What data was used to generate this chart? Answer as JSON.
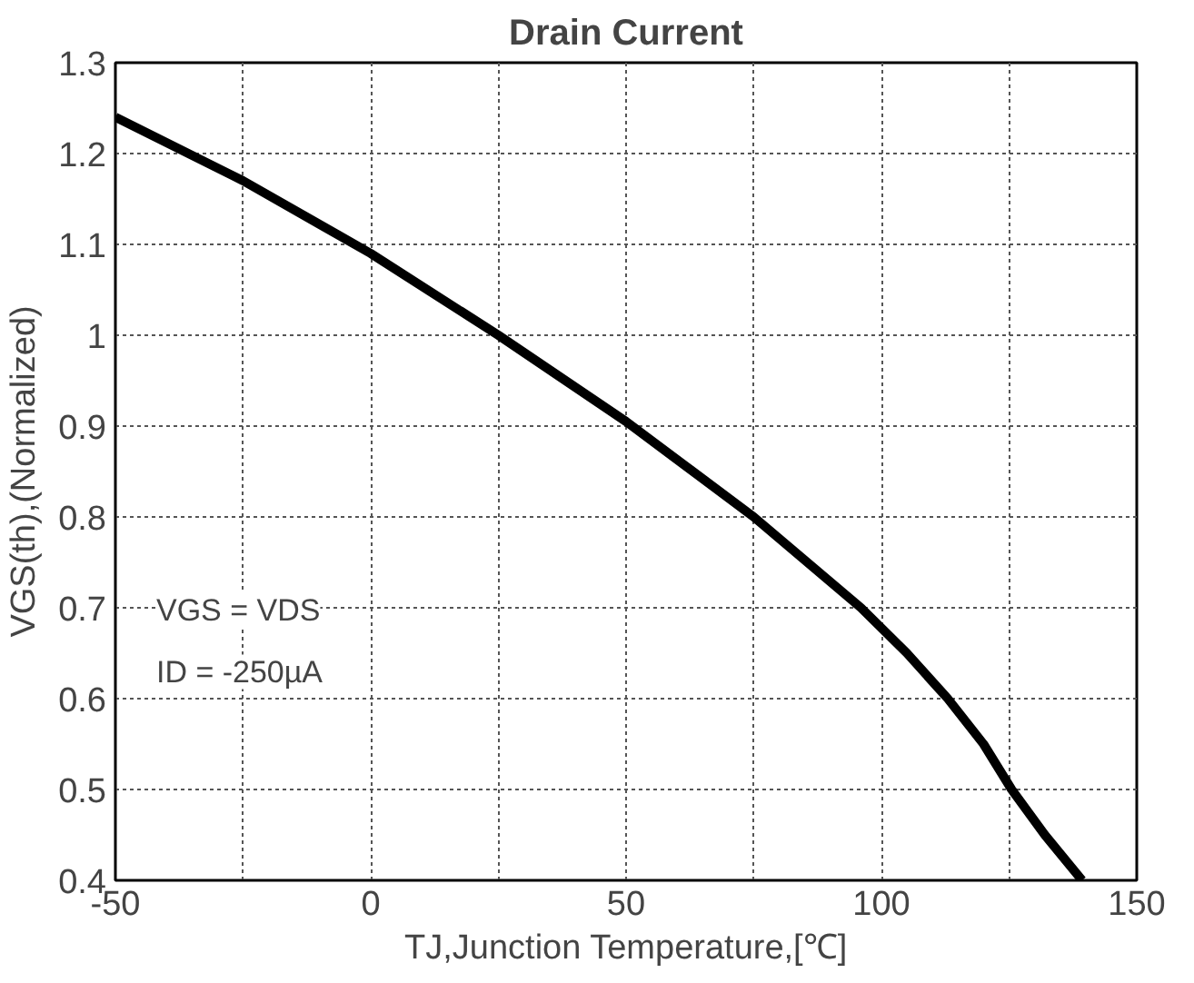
{
  "chart_data": {
    "type": "line",
    "title": "Drain Current",
    "xlabel": "TJ,Junction Temperature,[℃]",
    "ylabel": "VGS(th),(Normalized)",
    "annotations": [
      "VGS = VDS",
      "ID = -250µA"
    ],
    "x": [
      -50,
      -25,
      0,
      25,
      50,
      75,
      96,
      105,
      113,
      120,
      125.5,
      132,
      139.3
    ],
    "series": [
      {
        "color": "#000000",
        "values": [
          1.24,
          1.17,
          1.09,
          1.0,
          0.905,
          0.8,
          0.7,
          0.65,
          0.6,
          0.55,
          0.5,
          0.45,
          0.4
        ]
      }
    ],
    "xlim": [
      -50,
      150
    ],
    "ylim": [
      0.4,
      1.3
    ],
    "xticks": [
      -50,
      {
        "value": -25,
        "label": null
      },
      0,
      {
        "value": 25,
        "label": null
      },
      50,
      {
        "value": 75,
        "label": null
      },
      100,
      {
        "value": 125,
        "label": null
      },
      150
    ],
    "yticks": [
      0.4,
      0.5,
      0.6,
      0.7,
      0.8,
      0.9,
      1,
      1.1,
      1.2,
      1.3
    ],
    "grid": true,
    "marker": "none",
    "line_style": "solid"
  }
}
